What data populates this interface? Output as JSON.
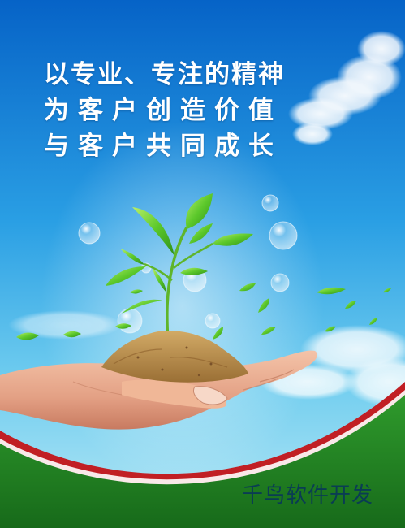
{
  "slogan": {
    "line1": "以专业、专注的精神",
    "line2": "为客户创造价值",
    "line3": "与客户共同成长"
  },
  "watermark": {
    "text": "千鸟软件开发"
  },
  "colors": {
    "sky_top": "#0663c7",
    "sky_bottom": "#8ed6f2",
    "red_band": "#c11f24",
    "green_ground": "#237d24",
    "leaf": "#58c52a",
    "soil": "#b58b4b",
    "skin": "#e9a98c",
    "slogan_text": "#ffffff",
    "watermark_text": "#06305f"
  }
}
